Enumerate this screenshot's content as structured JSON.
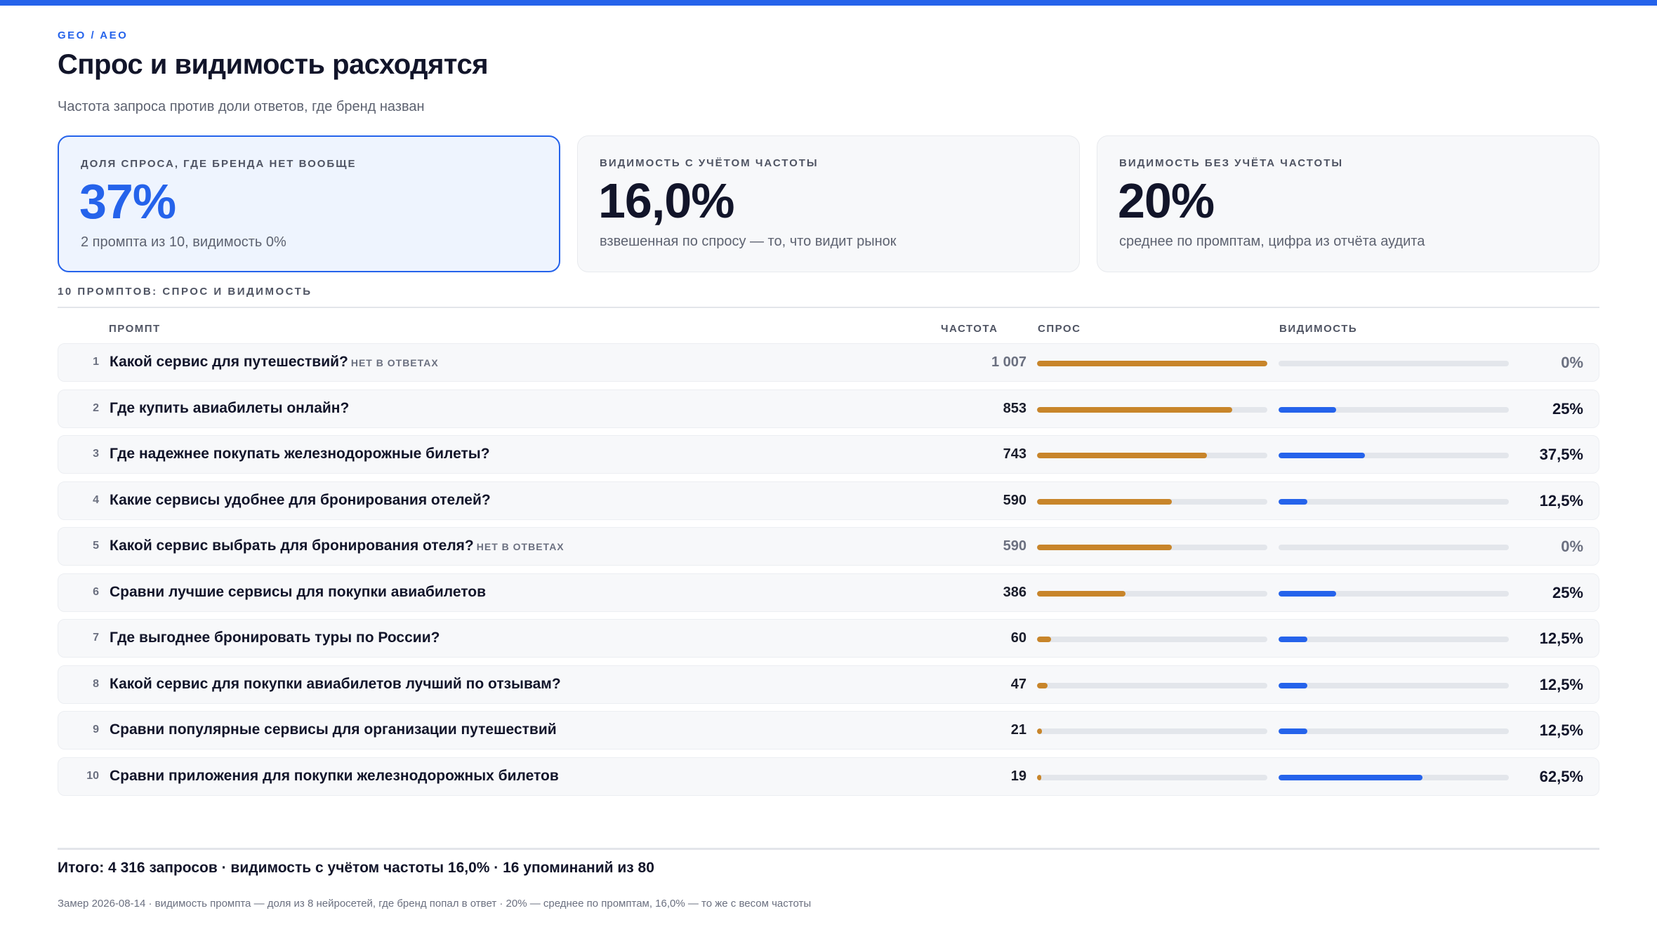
{
  "eyebrow": "GEO / AEO",
  "title": "Спрос и видимость расходятся",
  "subtitle": "Частота запроса против доли ответов, где бренд назван",
  "cards": [
    {
      "label": "ДОЛЯ СПРОСА, ГДЕ БРЕНДА НЕТ ВООБЩЕ",
      "value": "37%",
      "note": "2 промпта из 10, видимость 0%"
    },
    {
      "label": "ВИДИМОСТЬ С УЧЁТОМ ЧАСТОТЫ",
      "value": "16,0%",
      "note": "взвешенная по спросу — то, что видит рынок"
    },
    {
      "label": "ВИДИМОСТЬ БЕЗ УЧЁТА ЧАСТОТЫ",
      "value": "20%",
      "note": "среднее по промптам, цифра из отчёта аудита"
    }
  ],
  "section_label": "10 ПРОМПТОВ: СПРОС И ВИДИМОСТЬ",
  "table_headers": {
    "prompt": "ПРОМПТ",
    "frequency": "ЧАСТОТА",
    "demand": "СПРОС",
    "visibility": "ВИДИМОСТЬ"
  },
  "chart_data": {
    "type": "table",
    "max_frequency": 1007,
    "colors": {
      "demand": "#c8852a",
      "visibility": "#2563eb",
      "track": "#e3e6eb",
      "accent": "#2563eb"
    },
    "rows": [
      {
        "num": "1",
        "prompt": "Какой сервис для путешествий?",
        "flag": "НЕТ В ОТВЕТАХ",
        "frequency": 1007,
        "frequency_label": "1 007",
        "visibility": 0,
        "visibility_label": "0%"
      },
      {
        "num": "2",
        "prompt": "Где купить авиабилеты онлайн?",
        "flag": "",
        "frequency": 853,
        "frequency_label": "853",
        "visibility": 25,
        "visibility_label": "25%"
      },
      {
        "num": "3",
        "prompt": "Где надежнее покупать железнодорожные билеты?",
        "flag": "",
        "frequency": 743,
        "frequency_label": "743",
        "visibility": 37.5,
        "visibility_label": "37,5%"
      },
      {
        "num": "4",
        "prompt": "Какие сервисы удобнее для бронирования отелей?",
        "flag": "",
        "frequency": 590,
        "frequency_label": "590",
        "visibility": 12.5,
        "visibility_label": "12,5%"
      },
      {
        "num": "5",
        "prompt": "Какой сервис выбрать для бронирования отеля?",
        "flag": "НЕТ В ОТВЕТАХ",
        "frequency": 590,
        "frequency_label": "590",
        "visibility": 0,
        "visibility_label": "0%"
      },
      {
        "num": "6",
        "prompt": "Сравни лучшие сервисы для покупки авиабилетов",
        "flag": "",
        "frequency": 386,
        "frequency_label": "386",
        "visibility": 25,
        "visibility_label": "25%"
      },
      {
        "num": "7",
        "prompt": "Где выгоднее бронировать туры по России?",
        "flag": "",
        "frequency": 60,
        "frequency_label": "60",
        "visibility": 12.5,
        "visibility_label": "12,5%"
      },
      {
        "num": "8",
        "prompt": "Какой сервис для покупки авиабилетов лучший по отзывам?",
        "flag": "",
        "frequency": 47,
        "frequency_label": "47",
        "visibility": 12.5,
        "visibility_label": "12,5%"
      },
      {
        "num": "9",
        "prompt": "Сравни популярные сервисы для организации путешествий",
        "flag": "",
        "frequency": 21,
        "frequency_label": "21",
        "visibility": 12.5,
        "visibility_label": "12,5%"
      },
      {
        "num": "10",
        "prompt": "Сравни приложения для покупки железнодорожных билетов",
        "flag": "",
        "frequency": 19,
        "frequency_label": "19",
        "visibility": 62.5,
        "visibility_label": "62,5%"
      }
    ]
  },
  "summary": "Итого: 4 316 запросов · видимость с учётом частоты 16,0% · 16 упоминаний из 80",
  "footnote": "Замер 2026-08-14 · видимость промпта — доля из 8 нейросетей, где бренд попал в ответ · 20% — среднее по промптам, 16,0% — то же с весом частоты"
}
